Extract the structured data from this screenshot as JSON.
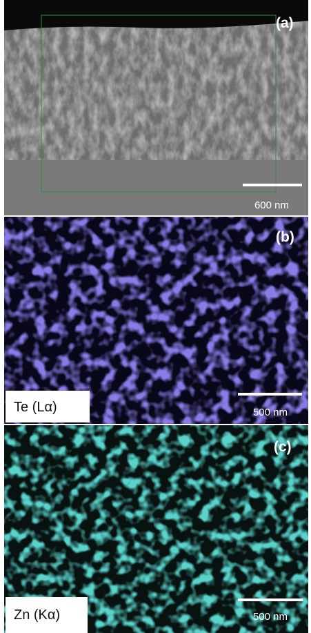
{
  "panels": [
    {
      "label": "(a)",
      "scale_bar": "600 nm"
    },
    {
      "label": "(b)",
      "element": "Te (Lα)",
      "scale_bar": "500 nm"
    },
    {
      "label": "(c)",
      "element": "Zn (Kα)",
      "scale_bar": "500 nm"
    }
  ]
}
